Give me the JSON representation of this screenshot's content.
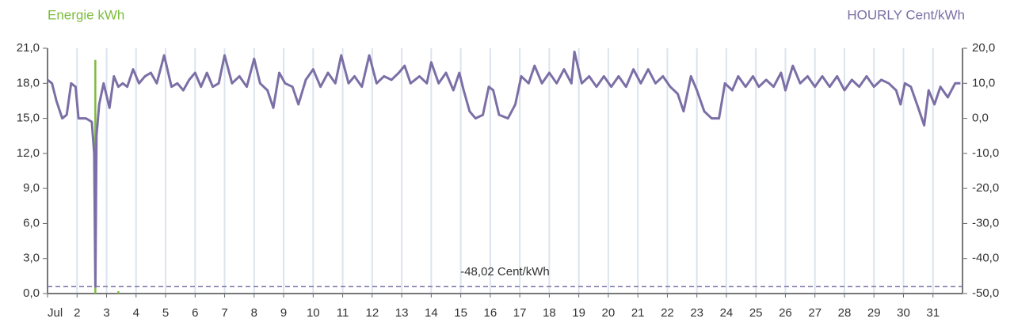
{
  "chart_data": {
    "type": "line",
    "ylabel": "Energie kWh",
    "y2label": "HOURLY Cent/kWh",
    "xlim": [
      1,
      32
    ],
    "xticks": [
      {
        "value": 1,
        "label": "Jul"
      },
      2,
      3,
      4,
      5,
      6,
      7,
      8,
      9,
      10,
      11,
      12,
      13,
      14,
      15,
      16,
      17,
      18,
      19,
      20,
      21,
      22,
      23,
      24,
      25,
      26,
      27,
      28,
      29,
      30,
      31
    ],
    "ylim": [
      0,
      21
    ],
    "yticks": [
      {
        "value": 0,
        "label": "0,0"
      },
      {
        "value": 3,
        "label": "3,0"
      },
      {
        "value": 6,
        "label": "6,0"
      },
      {
        "value": 9,
        "label": "9,0"
      },
      {
        "value": 12,
        "label": "12,0"
      },
      {
        "value": 15,
        "label": "15,0"
      },
      {
        "value": 18,
        "label": "18,0"
      },
      {
        "value": 21,
        "label": "21,0"
      }
    ],
    "y2lim": [
      -50,
      20
    ],
    "y2ticks": [
      {
        "value": -50,
        "label": "-50,0"
      },
      {
        "value": -40,
        "label": "-40,0"
      },
      {
        "value": -30,
        "label": "-30,0"
      },
      {
        "value": -20,
        "label": "-20,0"
      },
      {
        "value": -10,
        "label": "-10,0"
      },
      {
        "value": 0,
        "label": "0,0"
      },
      {
        "value": 10,
        "label": "10,0"
      },
      {
        "value": 20,
        "label": "20,0"
      }
    ],
    "grid": true,
    "series": [
      {
        "type": "bar",
        "color": "#7cbd3c",
        "x": [
          2.62,
          3.4
        ],
        "values": [
          20,
          0.2
        ]
      },
      {
        "type": "line",
        "color": "#7b6fa6",
        "axis": "y2",
        "x": [
          1.0,
          1.15,
          1.3,
          1.5,
          1.65,
          1.8,
          1.95,
          2.05,
          2.3,
          2.5,
          2.58,
          2.62,
          2.66,
          2.75,
          2.9,
          3.1,
          3.25,
          3.4,
          3.55,
          3.7,
          3.9,
          4.1,
          4.3,
          4.5,
          4.7,
          4.95,
          5.2,
          5.4,
          5.6,
          5.8,
          6.0,
          6.2,
          6.4,
          6.6,
          6.8,
          7.0,
          7.25,
          7.5,
          7.75,
          8.0,
          8.2,
          8.45,
          8.65,
          8.85,
          9.05,
          9.3,
          9.5,
          9.75,
          10.0,
          10.25,
          10.5,
          10.75,
          10.95,
          11.2,
          11.4,
          11.65,
          11.9,
          12.15,
          12.4,
          12.65,
          12.9,
          13.1,
          13.3,
          13.6,
          13.85,
          14.0,
          14.25,
          14.5,
          14.75,
          14.95,
          15.1,
          15.3,
          15.5,
          15.75,
          15.95,
          16.1,
          16.3,
          16.6,
          16.85,
          17.05,
          17.3,
          17.5,
          17.75,
          18.0,
          18.25,
          18.5,
          18.75,
          18.85,
          19.1,
          19.35,
          19.6,
          19.85,
          20.1,
          20.35,
          20.6,
          20.85,
          21.1,
          21.35,
          21.6,
          21.85,
          22.1,
          22.35,
          22.55,
          22.8,
          23.0,
          23.25,
          23.5,
          23.75,
          23.95,
          24.2,
          24.4,
          24.65,
          24.9,
          25.1,
          25.35,
          25.6,
          25.85,
          26.0,
          26.25,
          26.5,
          26.75,
          27.0,
          27.25,
          27.5,
          27.75,
          28.0,
          28.25,
          28.5,
          28.75,
          29.0,
          29.25,
          29.5,
          29.75,
          29.9,
          30.05,
          30.25,
          30.5,
          30.7,
          30.85,
          31.05,
          31.25,
          31.5,
          31.75,
          31.93
        ],
        "values": [
          11,
          10,
          5,
          0,
          1,
          10,
          9,
          0,
          0,
          -1,
          -10,
          -48,
          -5,
          4,
          10,
          3,
          12,
          9,
          10,
          9,
          14,
          10,
          12,
          13,
          10,
          18,
          9,
          10,
          8,
          11,
          13,
          9,
          13,
          9,
          10,
          18,
          10,
          12,
          9,
          17,
          10,
          8,
          3,
          13,
          10,
          9,
          4,
          11,
          14,
          9,
          13,
          10,
          18,
          10,
          12,
          9,
          18,
          10,
          12,
          11,
          13,
          15,
          10,
          12,
          10,
          16,
          10,
          13,
          8,
          13,
          8,
          2,
          0,
          1,
          9,
          8,
          1,
          0,
          4,
          12,
          10,
          15,
          10,
          13,
          10,
          14,
          10,
          19,
          10,
          12,
          9,
          12,
          9,
          12,
          9,
          14,
          10,
          14,
          10,
          12,
          9,
          7,
          2,
          12,
          8,
          2,
          0,
          0,
          10,
          8,
          12,
          9,
          12,
          9,
          11,
          9,
          13,
          8,
          15,
          10,
          12,
          9,
          12,
          9,
          12,
          8,
          11,
          9,
          12,
          9,
          11,
          10,
          8,
          4,
          10,
          9,
          3,
          -2,
          8,
          4,
          9,
          6,
          10,
          10
        ]
      }
    ],
    "annotations": [
      {
        "text": "-48,02 Cent/kWh",
        "value": -48.02,
        "axis": "y2"
      }
    ]
  }
}
